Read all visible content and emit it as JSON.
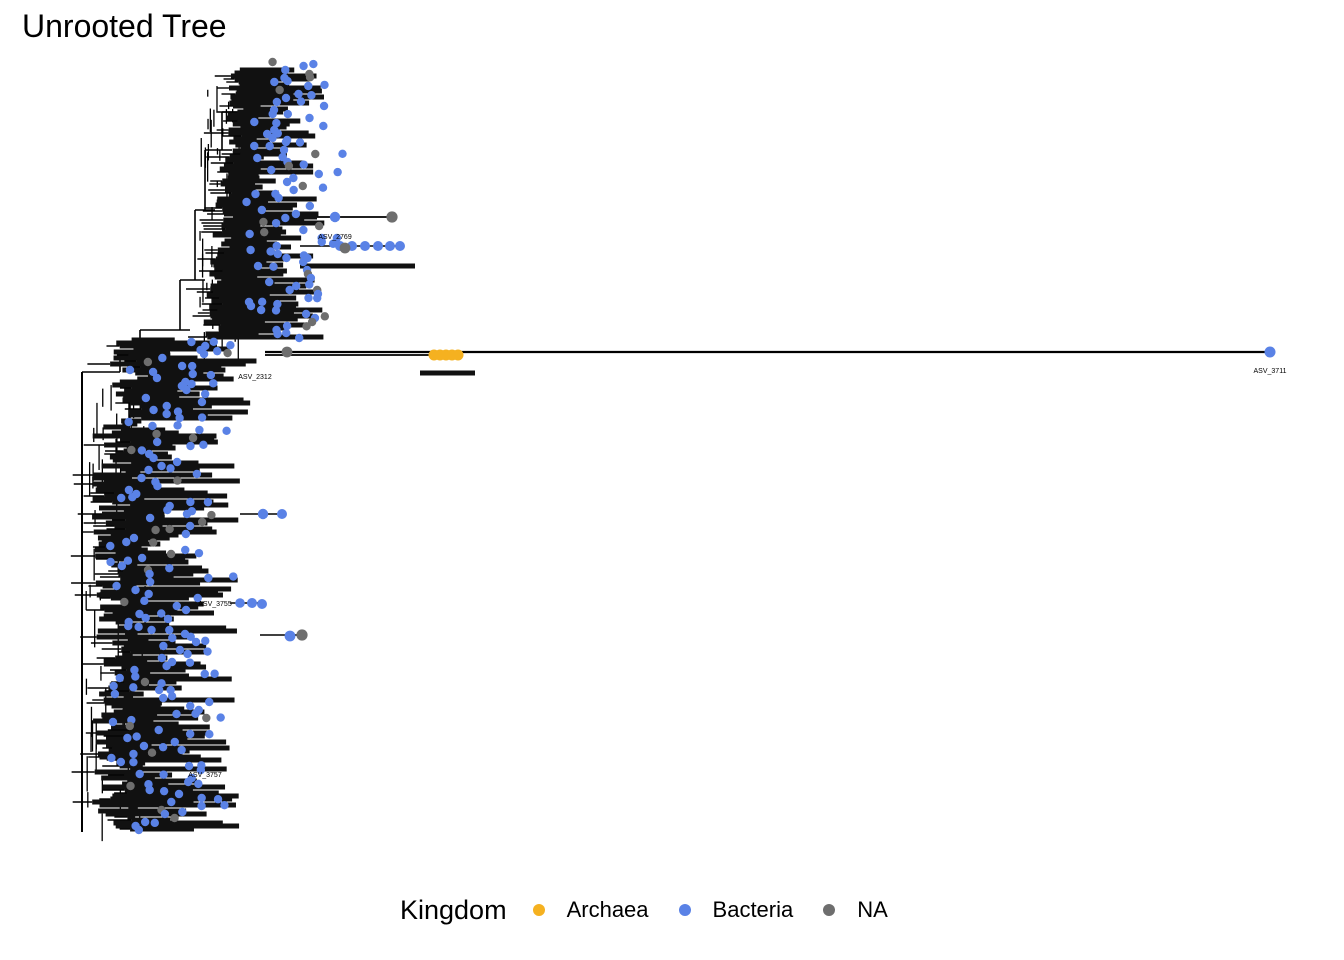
{
  "title": "Unrooted Tree",
  "legend": {
    "title": "Kingdom",
    "items": [
      {
        "label": "Archaea",
        "color": "#F5B120"
      },
      {
        "label": "Bacteria",
        "color": "#5A82E6"
      },
      {
        "label": "NA",
        "color": "#6E6E6E"
      }
    ]
  },
  "tree": {
    "branch_color": "#000000",
    "highlighted_tips": [
      {
        "label": "ASV_3711",
        "kingdom": "Bacteria"
      },
      {
        "label": "ASV_2769",
        "kingdom": "Bacteria"
      },
      {
        "label": "ASV_3757",
        "kingdom": "Bacteria"
      },
      {
        "label": "ASV_3755",
        "kingdom": "Bacteria"
      },
      {
        "label": "ASV_2312",
        "kingdom": "Bacteria"
      }
    ]
  }
}
